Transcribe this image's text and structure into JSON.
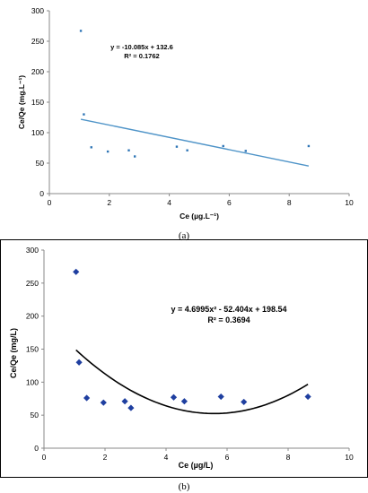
{
  "chart_data": [
    {
      "type": "scatter",
      "panel_label": "(a)",
      "xlabel": "Ce (µg.L⁻¹)",
      "ylabel": "Ce/Qe (mg.L⁻¹)",
      "xlim": [
        0,
        10
      ],
      "ylim": [
        0,
        300
      ],
      "xticks": [
        "0",
        "2",
        "4",
        "6",
        "8",
        "10"
      ],
      "yticks": [
        "0",
        "50",
        "100",
        "150",
        "200",
        "250",
        "300"
      ],
      "grid": false,
      "marker_color": "#2e75b6",
      "trend_color": "#4f94c8",
      "trendline": {
        "kind": "linear",
        "equation": "y = -10.085x + 132.6",
        "r2": "R² = 0.1762",
        "slope": -10.085,
        "intercept": 132.6,
        "x_range": [
          1.05,
          8.65
        ]
      },
      "points": [
        {
          "x": 1.05,
          "y": 267
        },
        {
          "x": 1.15,
          "y": 130
        },
        {
          "x": 1.4,
          "y": 76
        },
        {
          "x": 1.95,
          "y": 69
        },
        {
          "x": 2.65,
          "y": 71
        },
        {
          "x": 2.85,
          "y": 61
        },
        {
          "x": 4.25,
          "y": 77
        },
        {
          "x": 4.6,
          "y": 71
        },
        {
          "x": 5.8,
          "y": 78
        },
        {
          "x": 6.55,
          "y": 70
        },
        {
          "x": 8.65,
          "y": 78
        }
      ]
    },
    {
      "type": "scatter",
      "panel_label": "(b)",
      "xlabel": "Ce (µg/L)",
      "ylabel": "Ce/Qe (mg/L)",
      "xlim": [
        0,
        10
      ],
      "ylim": [
        0,
        300
      ],
      "xticks": [
        "0",
        "2",
        "4",
        "6",
        "8",
        "10"
      ],
      "yticks": [
        "0",
        "50",
        "100",
        "150",
        "200",
        "250",
        "300"
      ],
      "grid": false,
      "marker_color": "#1f3fa0",
      "trend_color": "#000000",
      "trendline": {
        "kind": "polynomial",
        "equation": "y = 4.6995x² - 52.404x + 198.54",
        "r2": "R² = 0.3694",
        "coefficients": [
          4.6995,
          -52.404,
          198.54
        ],
        "x_range": [
          1.05,
          8.65
        ]
      },
      "points": [
        {
          "x": 1.05,
          "y": 267
        },
        {
          "x": 1.15,
          "y": 130
        },
        {
          "x": 1.4,
          "y": 76
        },
        {
          "x": 1.95,
          "y": 69
        },
        {
          "x": 2.65,
          "y": 71
        },
        {
          "x": 2.85,
          "y": 61
        },
        {
          "x": 4.25,
          "y": 77
        },
        {
          "x": 4.6,
          "y": 71
        },
        {
          "x": 5.8,
          "y": 78
        },
        {
          "x": 6.55,
          "y": 70
        },
        {
          "x": 8.65,
          "y": 78
        }
      ]
    }
  ]
}
